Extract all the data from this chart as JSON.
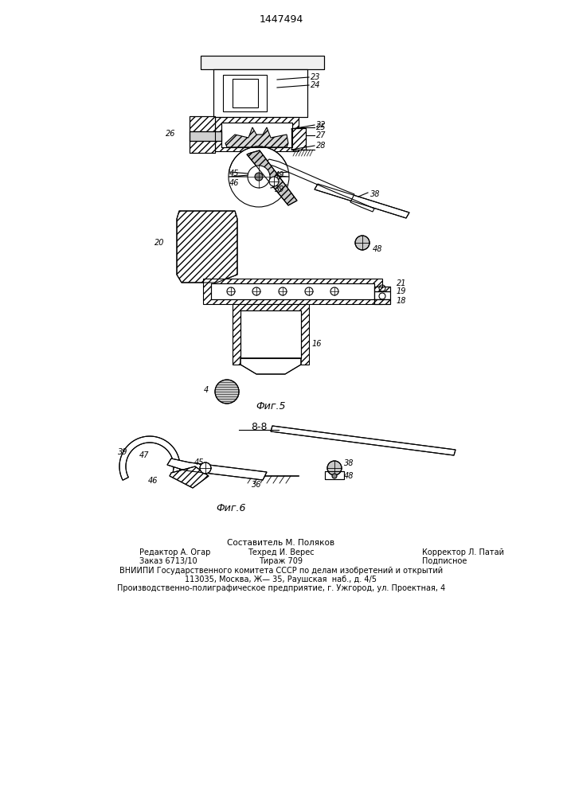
{
  "title": "1447494",
  "fig5_label": "Фиг.5",
  "fig6_label": "Фиг.6",
  "section_label": "8-8",
  "footer1": "Составитель М. Поляков",
  "footer2a": "Редактор А. Огар",
  "footer2b": "Техред И. Верес",
  "footer2c": "Корректор Л. Патай",
  "footer3a": "Заказ 6713/10",
  "footer3b": "Тираж 709",
  "footer3c": "Подписное",
  "footer4": "ВНИИПИ Государственного комитета СССР по делам изобретений и открытий",
  "footer5": "113035, Москва, Ж— 35, Раушская  наб., д. 4/5",
  "footer6": "Производственно-полиграфическое предприятие, г. Ужгород, ул. Проектная, 4",
  "bg_color": "#ffffff",
  "line_color": "#000000"
}
